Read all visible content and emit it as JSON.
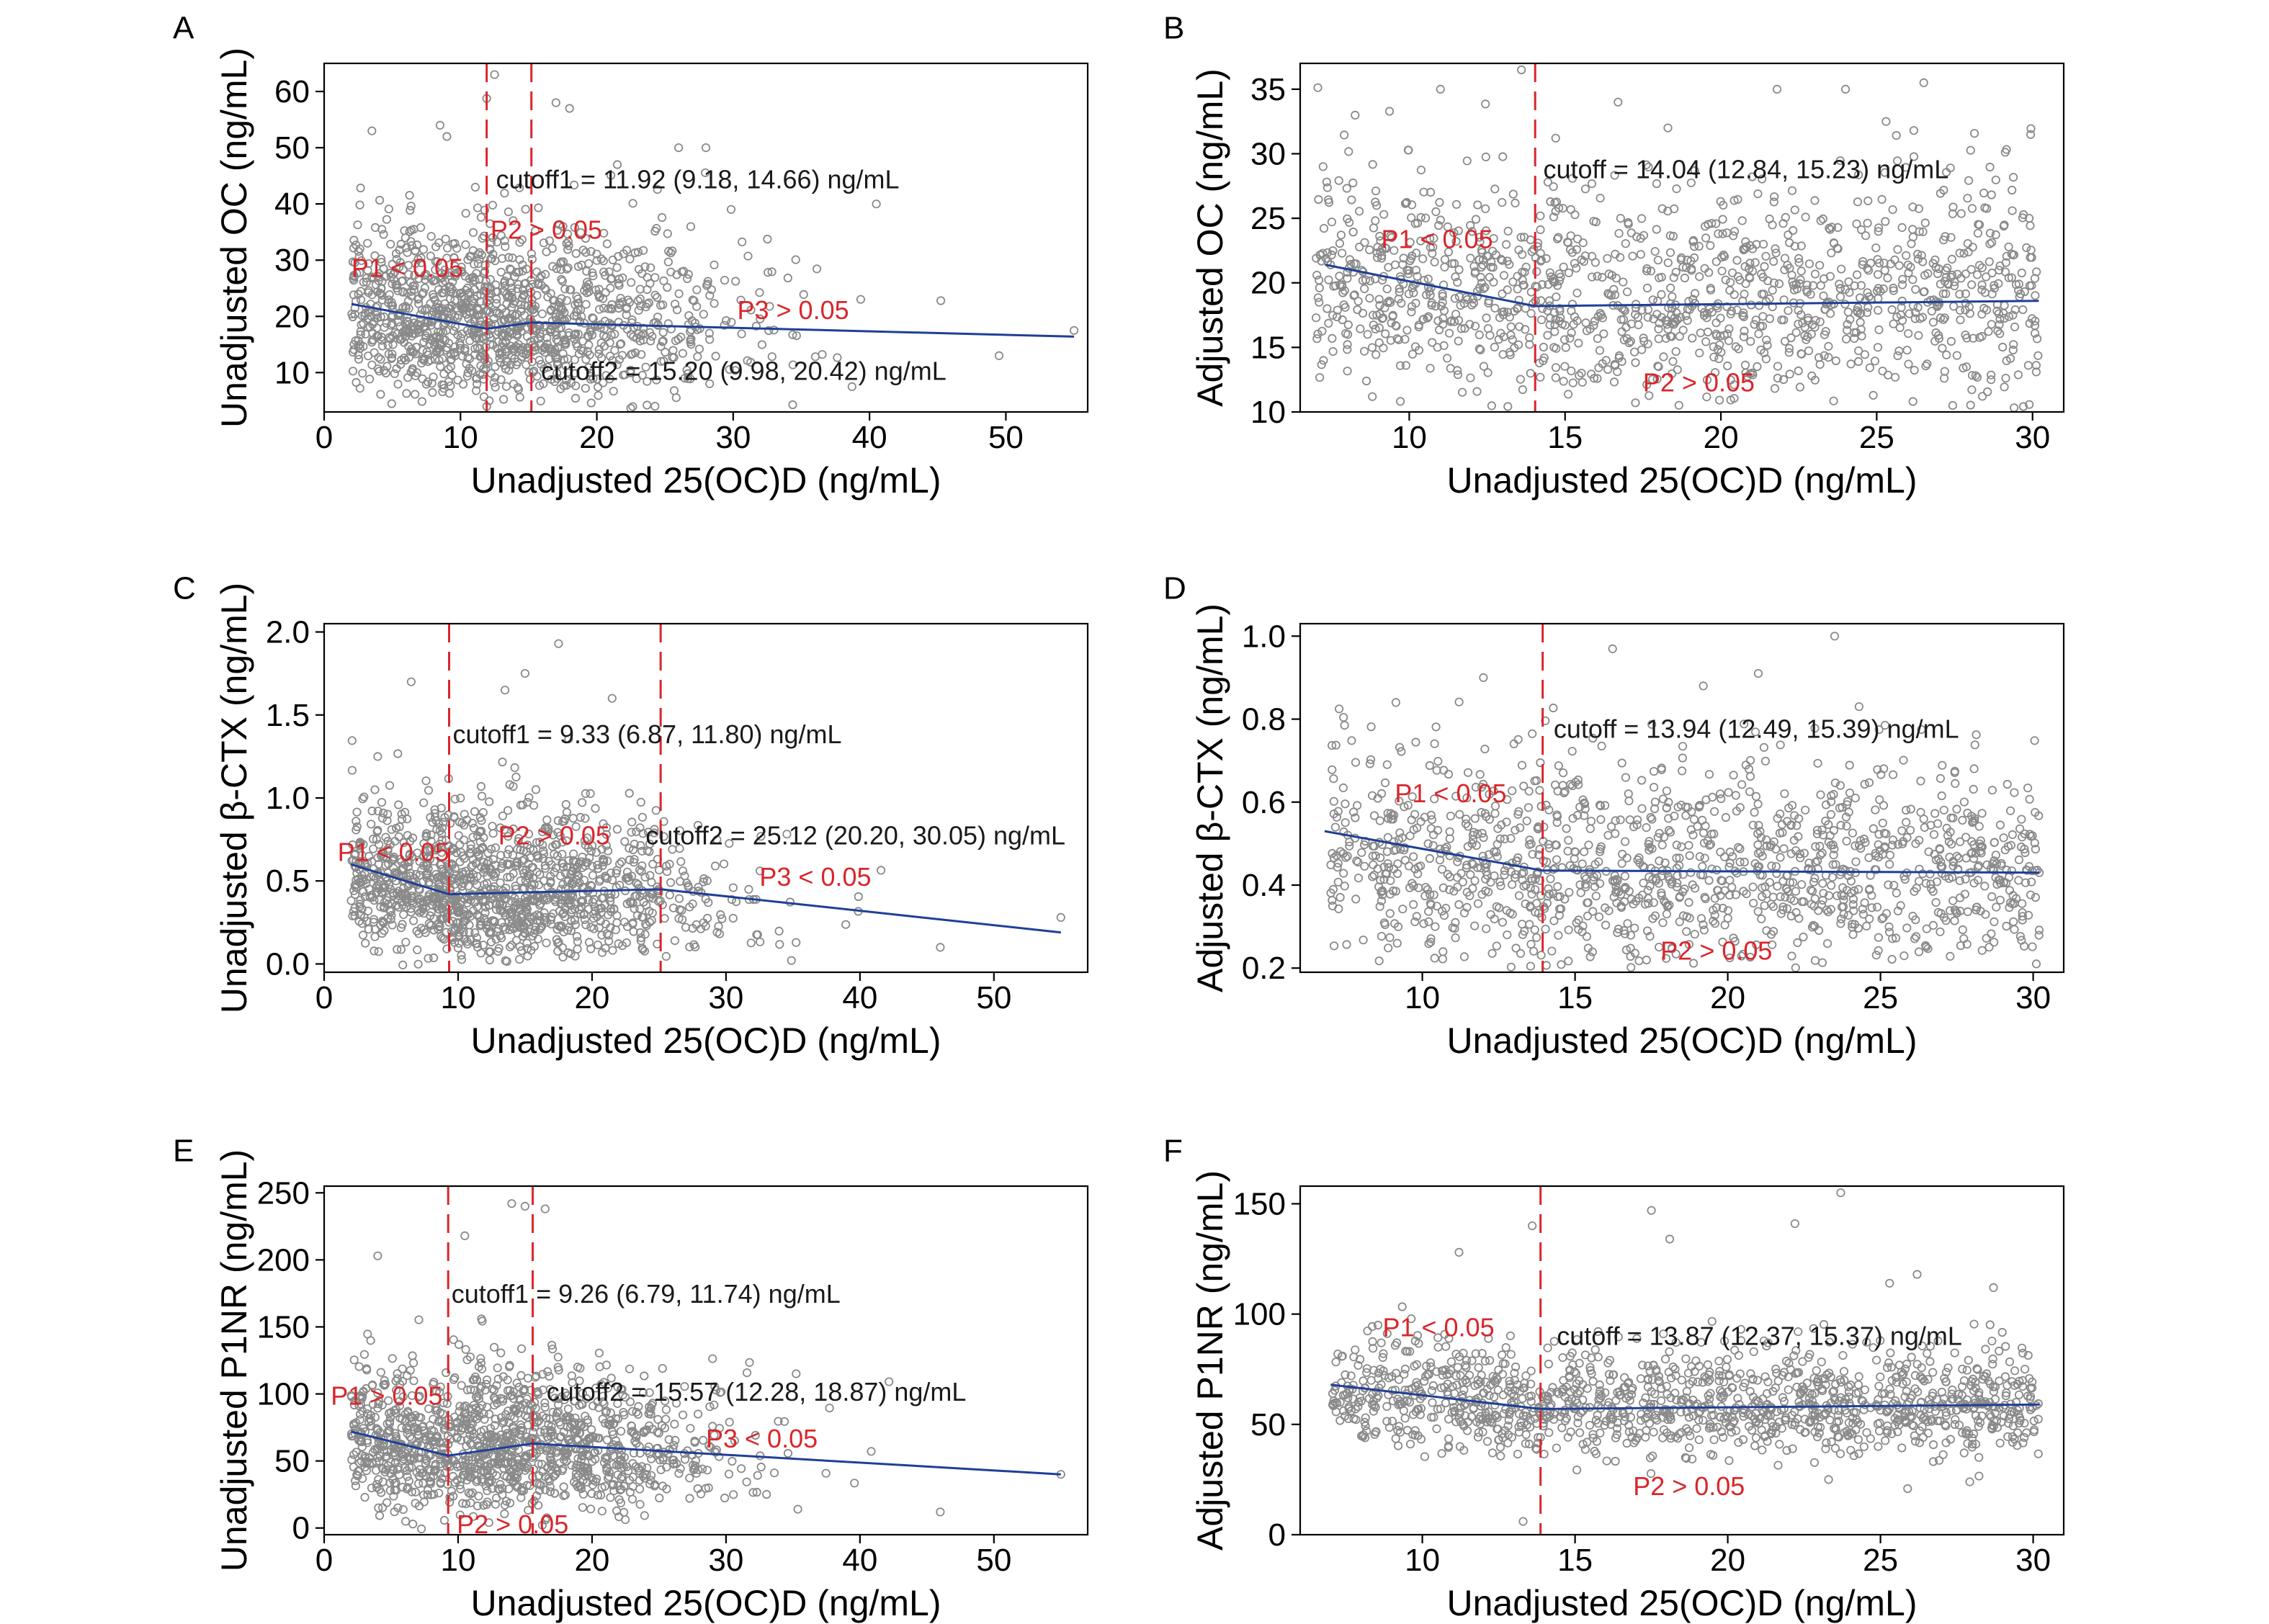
{
  "chart_data": [
    {
      "letter": "A",
      "type": "scatter",
      "xlabel": "Unadjusted 25(OC)D (ng/mL)",
      "ylabel": "Unadjusted OC (ng/mL)",
      "xlim": [
        0,
        56
      ],
      "ylim": [
        3,
        65
      ],
      "xticks": [
        0,
        10,
        20,
        30,
        40,
        50
      ],
      "yticks": [
        10,
        20,
        30,
        40,
        50,
        60
      ],
      "ytick_decimals": 0,
      "cutoffs": [
        11.92,
        15.2
      ],
      "fit_line": [
        [
          2,
          22.2
        ],
        [
          11.92,
          17.8
        ],
        [
          15.2,
          18.9
        ],
        [
          55,
          16.4
        ]
      ],
      "scatter": {
        "xmin": 2,
        "xmax": 55,
        "center": 11.5,
        "spread": 9,
        "ymid": 19,
        "ysd": 6.5,
        "yskew": 1,
        "n": 1300,
        "seed": 11
      },
      "outliers": [
        [
          3.5,
          53
        ],
        [
          8.5,
          54
        ],
        [
          9,
          52
        ],
        [
          12.5,
          63
        ],
        [
          17,
          58
        ],
        [
          18,
          57
        ],
        [
          21.5,
          47
        ],
        [
          26,
          50
        ],
        [
          28,
          50
        ],
        [
          40.5,
          40
        ],
        [
          49.5,
          13
        ],
        [
          55,
          17.5
        ]
      ],
      "annotations": [
        {
          "text": "cutoff1 = 11.92 (9.18, 14.66) ng/mL",
          "color": "black",
          "x": 12.6,
          "y": 42.8
        },
        {
          "text": "cutoff2 = 15.20 (9.98, 20.42) ng/mL",
          "color": "black",
          "x": 15.9,
          "y": 8.7
        },
        {
          "text": "P1 < 0.05",
          "color": "red",
          "x": 2,
          "y": 27
        },
        {
          "text": "P2 > 0.05",
          "color": "red",
          "x": 12.2,
          "y": 33.8
        },
        {
          "text": "P3 > 0.05",
          "color": "red",
          "x": 30.3,
          "y": 19.5
        }
      ]
    },
    {
      "letter": "B",
      "type": "scatter",
      "xlabel": "Unadjusted 25(OC)D (ng/mL)",
      "ylabel": "Adjusted OC (ng/mL)",
      "xlim": [
        6.5,
        31
      ],
      "ylim": [
        10,
        37
      ],
      "xticks": [
        10,
        15,
        20,
        25,
        30
      ],
      "yticks": [
        10,
        15,
        20,
        25,
        30,
        35
      ],
      "ytick_decimals": 0,
      "cutoffs": [
        14.04
      ],
      "fit_line": [
        [
          7.3,
          21.4
        ],
        [
          14.04,
          18.2
        ],
        [
          30.2,
          18.6
        ]
      ],
      "scatter": {
        "xmin": 7,
        "xmax": 30.3,
        "center": 18.5,
        "spread": 100,
        "ymid": 19,
        "ysd": 3.9,
        "yskew": 0.5,
        "n": 1300,
        "seed": 22
      },
      "outliers": [
        [
          11,
          35
        ],
        [
          13.6,
          36.5
        ],
        [
          16.7,
          34
        ],
        [
          21.8,
          35
        ],
        [
          24,
          35
        ],
        [
          25.3,
          32.5
        ],
        [
          18.3,
          32
        ]
      ],
      "annotations": [
        {
          "text": "cutoff = 14.04 (12.84, 15.23) ng/mL",
          "color": "black",
          "x": 14.3,
          "y": 28.1
        },
        {
          "text": "P1 < 0.05",
          "color": "red",
          "x": 9.1,
          "y": 22.7
        },
        {
          "text": "P2 > 0.05",
          "color": "red",
          "x": 17.5,
          "y": 11.6
        }
      ]
    },
    {
      "letter": "C",
      "type": "scatter",
      "xlabel": "Unadjusted 25(OC)D (ng/mL)",
      "ylabel": "Unadjusted β-CTX (ng/mL)",
      "xlim": [
        0,
        57
      ],
      "ylim": [
        -0.05,
        2.05
      ],
      "xticks": [
        0,
        10,
        20,
        30,
        40,
        50
      ],
      "yticks": [
        0,
        0.5,
        1.0,
        1.5,
        2.0
      ],
      "ytick_decimals": 1,
      "cutoffs": [
        9.33,
        25.12
      ],
      "fit_line": [
        [
          2,
          0.6
        ],
        [
          9.33,
          0.42
        ],
        [
          25.12,
          0.45
        ],
        [
          55,
          0.19
        ]
      ],
      "scatter": {
        "xmin": 2,
        "xmax": 55,
        "center": 11.5,
        "spread": 9,
        "ymid": 0.42,
        "ysd": 0.19,
        "yskew": 1,
        "n": 1300,
        "seed": 33
      },
      "outliers": [
        [
          6.5,
          1.7
        ],
        [
          13.5,
          1.65
        ],
        [
          15,
          1.75
        ],
        [
          17.5,
          1.93
        ],
        [
          21.5,
          1.6
        ],
        [
          4,
          1.25
        ],
        [
          46,
          0.1
        ],
        [
          55,
          0.28
        ]
      ],
      "annotations": [
        {
          "text": "cutoff1 = 9.33 (6.87, 11.80) ng/mL",
          "color": "black",
          "x": 9.6,
          "y": 1.33
        },
        {
          "text": "cutoff2 = 25.12 (20.20, 30.05) ng/mL",
          "color": "black",
          "x": 24,
          "y": 0.72
        },
        {
          "text": "P1 < 0.05",
          "color": "red",
          "x": 1,
          "y": 0.62
        },
        {
          "text": "P2 > 0.05",
          "color": "red",
          "x": 13,
          "y": 0.72
        },
        {
          "text": "P3 < 0.05",
          "color": "red",
          "x": 32.5,
          "y": 0.47
        }
      ]
    },
    {
      "letter": "D",
      "type": "scatter",
      "xlabel": "Unadjusted 25(OC)D (ng/mL)",
      "ylabel": "Adjusted β-CTX (ng/mL)",
      "xlim": [
        6,
        31
      ],
      "ylim": [
        0.19,
        1.03
      ],
      "xticks": [
        10,
        15,
        20,
        25,
        30
      ],
      "yticks": [
        0.2,
        0.4,
        0.6,
        0.8,
        1.0
      ],
      "ytick_decimals": 1,
      "cutoffs": [
        13.94
      ],
      "fit_line": [
        [
          6.8,
          0.53
        ],
        [
          13.94,
          0.435
        ],
        [
          30.2,
          0.43
        ]
      ],
      "scatter": {
        "xmin": 7,
        "xmax": 30.2,
        "center": 18.5,
        "spread": 100,
        "ymid": 0.44,
        "ysd": 0.12,
        "yskew": 0.4,
        "n": 1300,
        "seed": 44
      },
      "outliers": [
        [
          12,
          0.9
        ],
        [
          19.2,
          0.88
        ],
        [
          21,
          0.91
        ],
        [
          23.5,
          1.0
        ],
        [
          24.3,
          0.83
        ],
        [
          30.2,
          0.43
        ]
      ],
      "annotations": [
        {
          "text": "cutoff = 13.94 (12.49, 15.39) ng/mL",
          "color": "black",
          "x": 14.3,
          "y": 0.755
        },
        {
          "text": "P1 < 0.05",
          "color": "red",
          "x": 9.1,
          "y": 0.6
        },
        {
          "text": "P2 > 0.05",
          "color": "red",
          "x": 17.8,
          "y": 0.22
        }
      ]
    },
    {
      "letter": "E",
      "type": "scatter",
      "xlabel": "Unadjusted 25(OC)D (ng/mL)",
      "ylabel": "Unadjusted P1NR (ng/mL)",
      "xlim": [
        0,
        57
      ],
      "ylim": [
        -5,
        255
      ],
      "xticks": [
        0,
        10,
        20,
        30,
        40,
        50
      ],
      "yticks": [
        0,
        50,
        100,
        150,
        200,
        250
      ],
      "ytick_decimals": 0,
      "cutoffs": [
        9.26,
        15.57
      ],
      "fit_line": [
        [
          2,
          72
        ],
        [
          9.26,
          54
        ],
        [
          15.57,
          63
        ],
        [
          55,
          40
        ]
      ],
      "scatter": {
        "xmin": 2,
        "xmax": 55,
        "center": 11.5,
        "spread": 9,
        "ymid": 56,
        "ysd": 22,
        "yskew": 1,
        "n": 1300,
        "seed": 55
      },
      "outliers": [
        [
          4,
          203
        ],
        [
          14,
          242
        ],
        [
          15,
          240
        ],
        [
          16.5,
          238
        ],
        [
          10.5,
          218
        ],
        [
          46,
          12
        ],
        [
          55,
          40
        ]
      ],
      "annotations": [
        {
          "text": "cutoff1 = 9.26 (6.79, 11.74) ng/mL",
          "color": "black",
          "x": 9.5,
          "y": 168
        },
        {
          "text": "cutoff2 = 15.57 (12.28, 18.87) ng/mL",
          "color": "black",
          "x": 16.6,
          "y": 95
        },
        {
          "text": "P1 > 0.05",
          "color": "red",
          "x": 0.5,
          "y": 92
        },
        {
          "text": "P2 > 0.05",
          "color": "red",
          "x": 9.9,
          "y": -4
        },
        {
          "text": "P3 < 0.05",
          "color": "red",
          "x": 28.5,
          "y": 60
        }
      ]
    },
    {
      "letter": "F",
      "type": "scatter",
      "xlabel": "Unadjusted 25(OC)D (ng/mL)",
      "ylabel": "Adjusted P1NR (ng/mL)",
      "xlim": [
        6,
        31
      ],
      "ylim": [
        0,
        158
      ],
      "xticks": [
        10,
        15,
        20,
        25,
        30
      ],
      "yticks": [
        0,
        50,
        100,
        150
      ],
      "ytick_decimals": 0,
      "cutoffs": [
        13.87
      ],
      "fit_line": [
        [
          7,
          68
        ],
        [
          13.87,
          57
        ],
        [
          30.2,
          59
        ]
      ],
      "scatter": {
        "xmin": 7,
        "xmax": 30.2,
        "center": 18.5,
        "spread": 100,
        "ymid": 59,
        "ysd": 11,
        "yskew": 0.7,
        "n": 1300,
        "seed": 66
      },
      "outliers": [
        [
          11.2,
          128
        ],
        [
          13.6,
          140
        ],
        [
          17.5,
          147
        ],
        [
          18.1,
          134
        ],
        [
          22.2,
          141
        ],
        [
          23.7,
          155
        ],
        [
          25.3,
          114
        ],
        [
          26.2,
          118
        ],
        [
          28.7,
          112
        ],
        [
          13.3,
          6
        ]
      ],
      "annotations": [
        {
          "text": "cutoff = 13.87 (12.37, 15.37) ng/mL",
          "color": "black",
          "x": 14.4,
          "y": 86
        },
        {
          "text": "P1 < 0.05",
          "color": "red",
          "x": 8.7,
          "y": 90
        },
        {
          "text": "P2 > 0.05",
          "color": "red",
          "x": 16.9,
          "y": 18
        }
      ]
    }
  ]
}
